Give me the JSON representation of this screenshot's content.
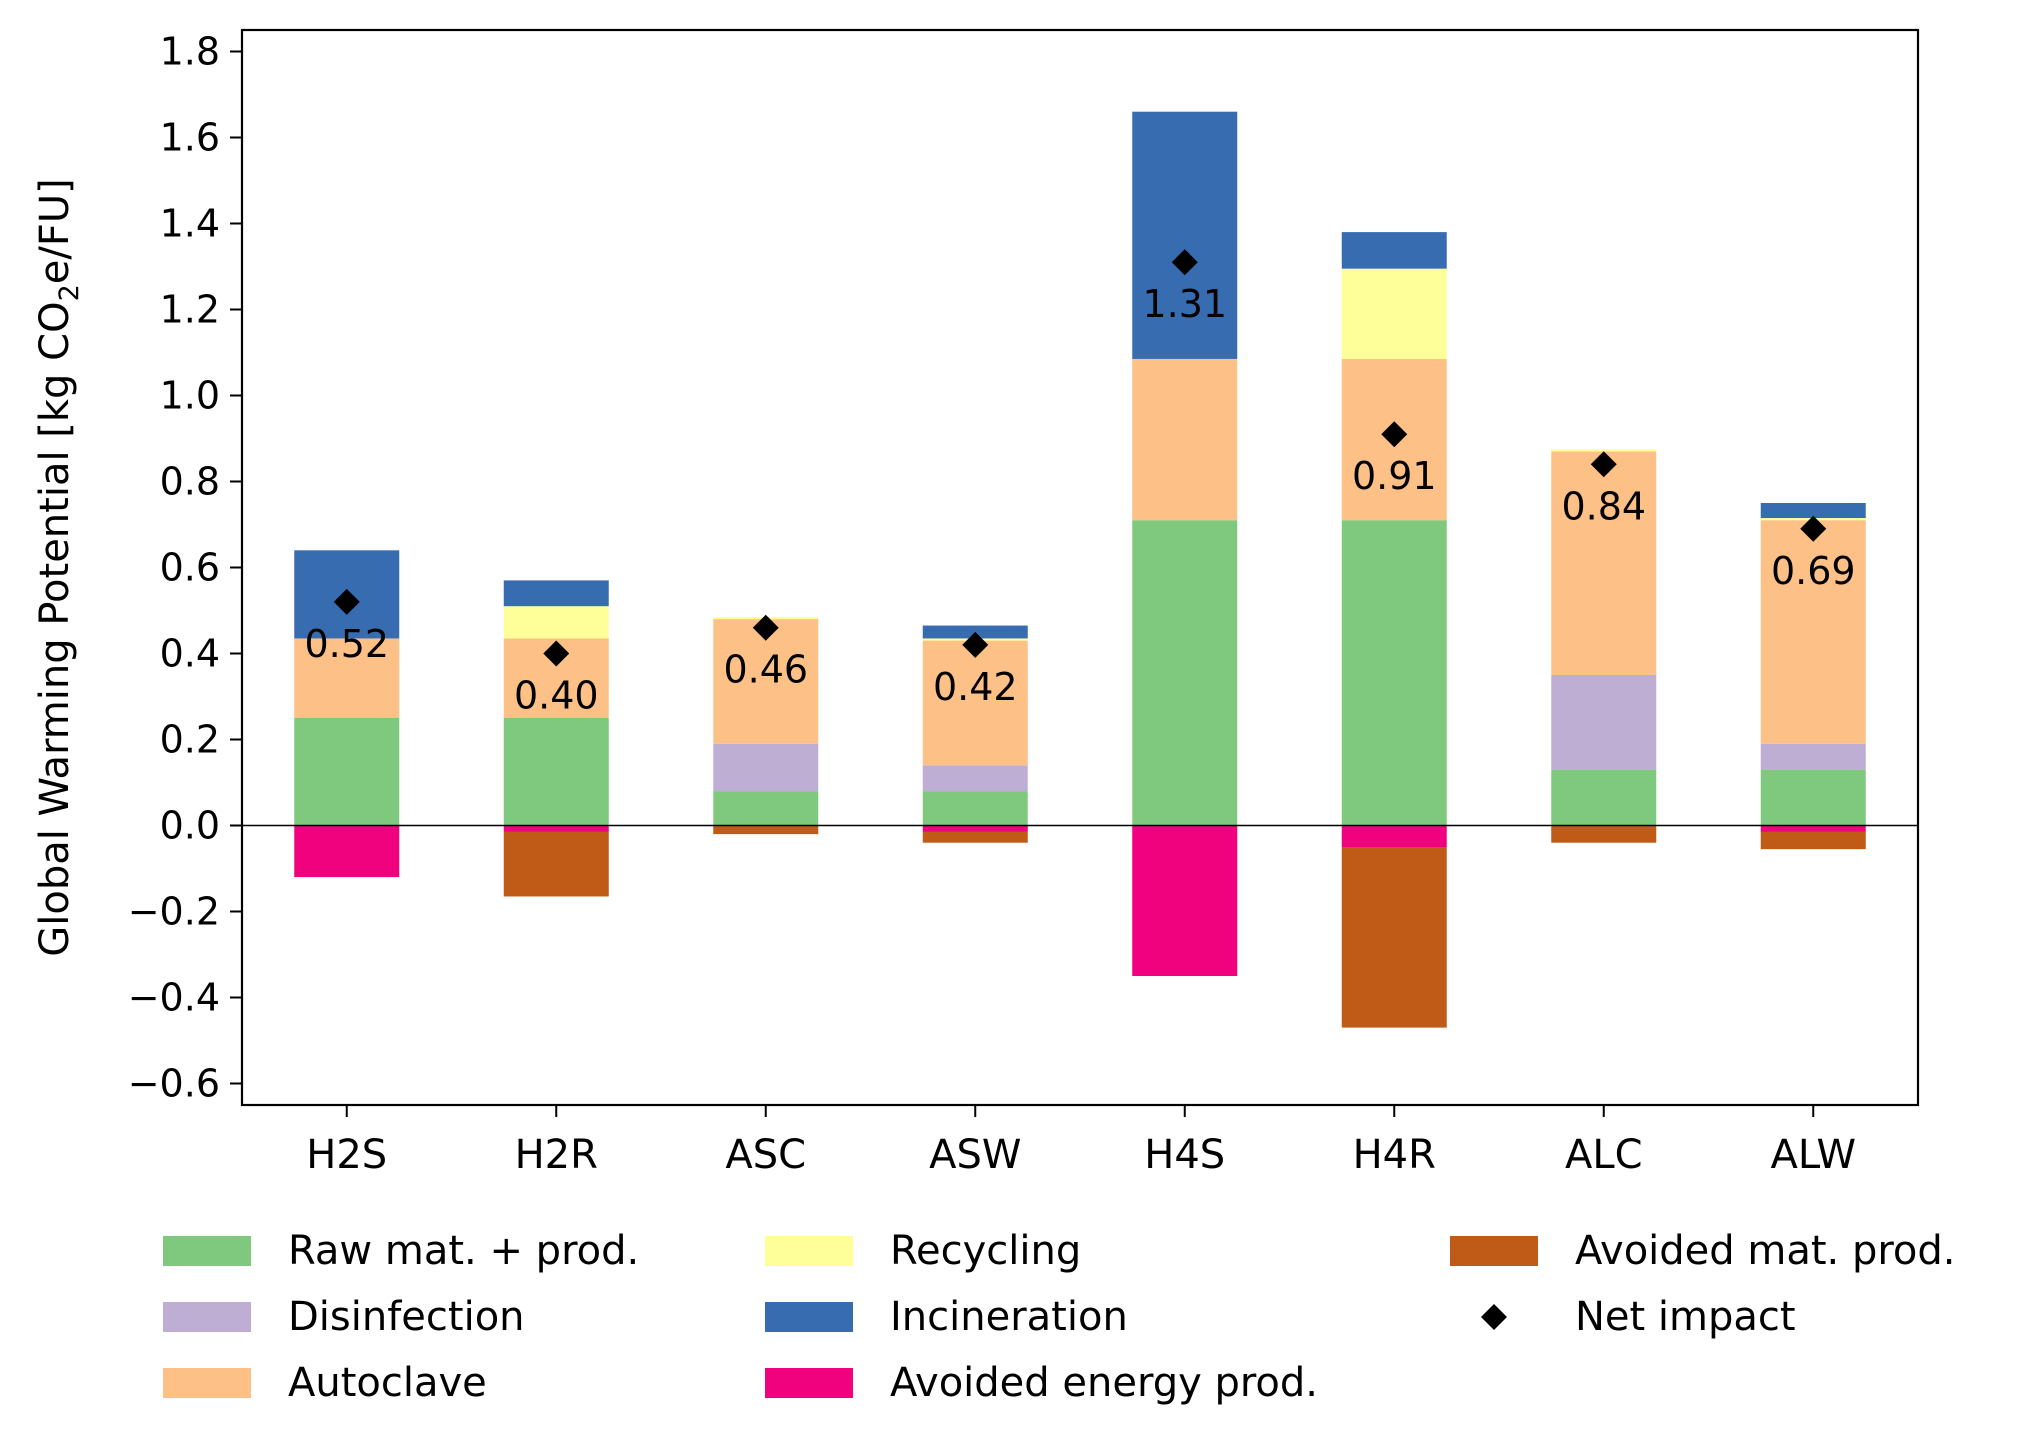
{
  "chart_data": {
    "type": "bar",
    "stacked": true,
    "categories": [
      "H2S",
      "H2R",
      "ASC",
      "ASW",
      "H4S",
      "H4R",
      "ALC",
      "ALW"
    ],
    "ylabel": "Global Warming Potential [kg CO",
    "ylabel_sub": "2",
    "ylabel_tail": "e/FU]",
    "ylim": [
      -0.65,
      1.85
    ],
    "yticks": [
      -0.6,
      -0.4,
      -0.2,
      0.0,
      0.2,
      0.4,
      0.6,
      0.8,
      1.0,
      1.2,
      1.4,
      1.6,
      1.8
    ],
    "ytick_labels": [
      "−0.6",
      "−0.4",
      "−0.2",
      "0.0",
      "0.2",
      "0.4",
      "0.6",
      "0.8",
      "1.0",
      "1.2",
      "1.4",
      "1.6",
      "1.8"
    ],
    "grid": false,
    "legend_position": "bottom",
    "series": [
      {
        "name": "Raw mat. + prod.",
        "color": "#7fc97f",
        "values": [
          0.25,
          0.25,
          0.08,
          0.08,
          0.71,
          0.71,
          0.13,
          0.13
        ]
      },
      {
        "name": "Disinfection",
        "color": "#beaed4",
        "values": [
          0.0,
          0.0,
          0.11,
          0.06,
          0.0,
          0.0,
          0.22,
          0.06
        ]
      },
      {
        "name": "Autoclave",
        "color": "#fdc086",
        "values": [
          0.185,
          0.185,
          0.29,
          0.29,
          0.375,
          0.375,
          0.52,
          0.52
        ]
      },
      {
        "name": "Recycling",
        "color": "#ffff99",
        "values": [
          0.0,
          0.075,
          0.005,
          0.005,
          0.0,
          0.21,
          0.005,
          0.005
        ]
      },
      {
        "name": "Incineration",
        "color": "#386cb0",
        "values": [
          0.205,
          0.06,
          0.0,
          0.03,
          0.575,
          0.085,
          0.0,
          0.035
        ]
      },
      {
        "name": "Avoided energy prod.",
        "color": "#f0027f",
        "values": [
          -0.12,
          -0.015,
          0.0,
          -0.015,
          -0.35,
          -0.05,
          0.0,
          -0.015
        ]
      },
      {
        "name": "Avoided mat. prod.",
        "color": "#bf5b17",
        "values": [
          0.0,
          -0.15,
          -0.02,
          -0.025,
          0.0,
          -0.42,
          -0.04,
          -0.04
        ]
      }
    ],
    "net_impact": {
      "name": "Net impact",
      "values": [
        0.52,
        0.4,
        0.46,
        0.42,
        1.31,
        0.91,
        0.84,
        0.69
      ],
      "labels": [
        "0.52",
        "0.40",
        "0.46",
        "0.42",
        "1.31",
        "0.91",
        "0.84",
        "0.69"
      ]
    }
  }
}
